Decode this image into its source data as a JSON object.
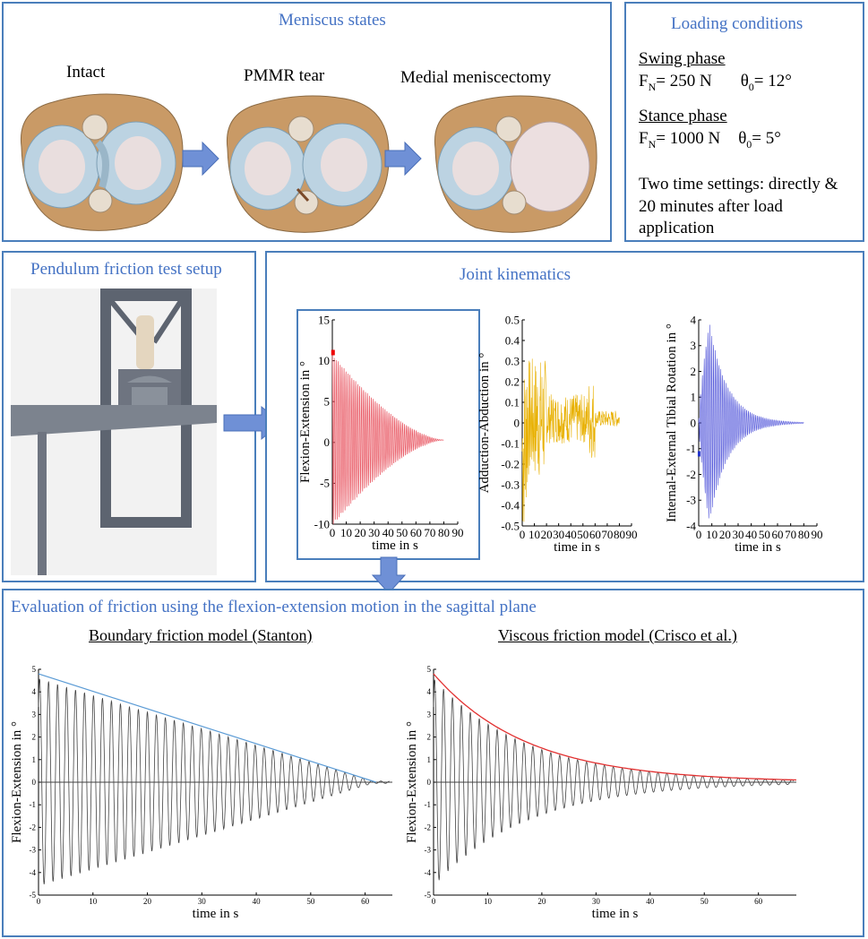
{
  "meniscus": {
    "title": "Meniscus states",
    "states": [
      "Intact",
      "PMMR tear",
      "Medial meniscectomy"
    ]
  },
  "loading": {
    "title": "Loading conditions",
    "swing": {
      "label": "Swing phase",
      "force_sym": "F",
      "force_sub": "N",
      "force_val": "= 250 N",
      "theta_sym": "θ",
      "theta_sub": "0",
      "theta_val": "= 12°"
    },
    "stance": {
      "label": "Stance phase",
      "force_sym": "F",
      "force_sub": "N",
      "force_val": "= 1000 N",
      "theta_sym": "θ",
      "theta_sub": "0",
      "theta_val": "= 5°"
    },
    "note": "Two time settings: directly & 20 minutes after load application"
  },
  "pendulum": {
    "title": "Pendulum friction test setup"
  },
  "kinematics": {
    "title": "Joint kinematics"
  },
  "evaluation": {
    "title": "Evaluation of friction using the flexion-extension motion in the sagittal plane",
    "left_title": "Boundary friction model (Stanton)",
    "right_title": "Viscous friction model (Crisco et al.)"
  },
  "colors": {
    "panel_border": "#4a7ebb",
    "title": "#4472c4",
    "arrow": "#6f90d6",
    "flex": "#e8535f",
    "abd": "#e8b000",
    "rot": "#4a4ed8",
    "envelope_linear": "#5b9bd5",
    "envelope_exp": "#e23030"
  },
  "chart_data": [
    {
      "type": "line",
      "id": "flex",
      "ylabel": "Flexion-Extension in °",
      "xlabel": "time in s",
      "xticks": [
        0,
        10,
        20,
        30,
        40,
        50,
        60,
        70,
        80,
        90
      ],
      "yticks": [
        -10,
        -5,
        0,
        5,
        10,
        15
      ],
      "xlim": [
        0,
        90
      ],
      "ylim": [
        -10,
        15
      ],
      "series": [
        {
          "name": "flexion-extension",
          "amplitude_start": 11,
          "decay_end": 80,
          "period": 1.4
        }
      ]
    },
    {
      "type": "line",
      "id": "abd",
      "ylabel": "Adduction-Abduction in °",
      "xlabel": "time in s",
      "xticks": [
        0,
        10,
        20,
        30,
        40,
        50,
        60,
        70,
        80,
        90
      ],
      "yticks": [
        -0.5,
        -0.4,
        -0.3,
        -0.2,
        -0.1,
        0,
        0.1,
        0.2,
        0.3,
        0.4,
        0.5
      ],
      "ytick_labels": [
        "-0.5",
        "-0.4",
        "-0.3",
        "-0.2",
        "-0.1",
        "0",
        "0.1",
        "0.2",
        "0.3",
        "0.4",
        "0.5"
      ],
      "xlim": [
        0,
        90
      ],
      "ylim": [
        -0.5,
        0.5
      ]
    },
    {
      "type": "line",
      "id": "rot",
      "ylabel": "Internal-External Tibial Rotation in °",
      "xlabel": "time in s",
      "xticks": [
        0,
        10,
        20,
        30,
        40,
        50,
        60,
        70,
        80,
        90
      ],
      "yticks": [
        -4,
        -3,
        -2,
        -1,
        0,
        1,
        2,
        3,
        4
      ],
      "xlim": [
        0,
        90
      ],
      "ylim": [
        -4,
        4
      ]
    },
    {
      "type": "line",
      "id": "boundary",
      "title": "Boundary friction model (Stanton)",
      "ylabel": "Flexion-Extension in °",
      "xlabel": "time in s",
      "xticks": [
        0,
        10,
        20,
        30,
        40,
        50,
        60
      ],
      "yticks": [
        -5,
        -4,
        -3,
        -2,
        -1,
        0,
        1,
        2,
        3,
        4,
        5
      ],
      "xlim": [
        0,
        65
      ],
      "ylim": [
        -5,
        5
      ],
      "envelope": "linear",
      "envelope_start": 4.8,
      "envelope_end_time": 62
    },
    {
      "type": "line",
      "id": "viscous",
      "title": "Viscous friction model (Crisco et al.)",
      "ylabel": "Flexion-Extension in °",
      "xlabel": "time in s",
      "xticks": [
        0,
        10,
        20,
        30,
        40,
        50,
        60
      ],
      "yticks": [
        -5,
        -4,
        -3,
        -2,
        -1,
        0,
        1,
        2,
        3,
        4,
        5
      ],
      "xlim": [
        0,
        67
      ],
      "ylim": [
        -5,
        5
      ],
      "envelope": "exponential",
      "envelope_start": 4.8,
      "envelope_end": 0.1
    }
  ]
}
